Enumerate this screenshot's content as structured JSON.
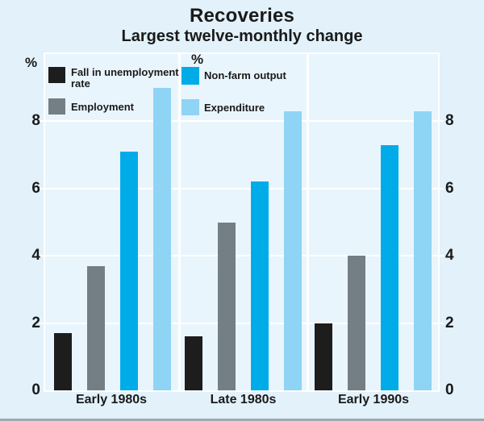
{
  "chart_data": {
    "type": "bar",
    "title": "Recoveries",
    "subtitle": "Largest twelve-monthly change",
    "categories": [
      "Early 1980s",
      "Late 1980s",
      "Early 1990s"
    ],
    "series": [
      {
        "name": "Fall in unemployment rate",
        "color": "#1d1d1d",
        "values": [
          1.7,
          1.6,
          2.0
        ]
      },
      {
        "name": "Employment",
        "color": "#747e85",
        "values": [
          3.7,
          5.0,
          4.0
        ]
      },
      {
        "name": "Non-farm output",
        "color": "#00ace8",
        "values": [
          7.1,
          6.2,
          7.3
        ]
      },
      {
        "name": "Expenditure",
        "color": "#8fd4f5",
        "values": [
          9.0,
          8.3,
          8.3
        ]
      }
    ],
    "unit_labels": [
      "%",
      "%"
    ],
    "ylim": [
      0,
      10
    ],
    "yticks": [
      0,
      2,
      4,
      6,
      8
    ],
    "grid": "horizontal-white-lines",
    "legend_position": "top-left-two-columns",
    "xlabel": "",
    "ylabel": "%"
  },
  "colors": {
    "figure_bg": "#e2f1fa",
    "plot_bg": "#e9f5fd",
    "grid": "#ffffff",
    "text": "#1a1a1a",
    "bottom_edge": "#9fa9b1"
  }
}
